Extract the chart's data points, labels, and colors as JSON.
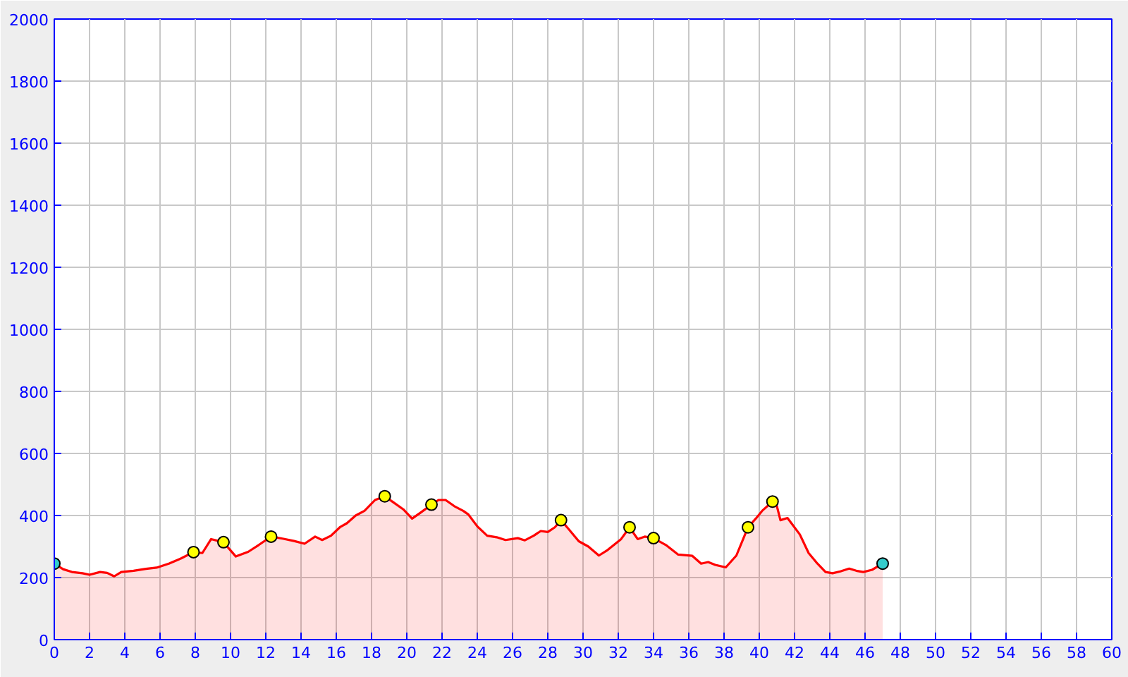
{
  "chart_data": {
    "type": "area",
    "xlim": [
      0,
      60
    ],
    "xticks": [
      0,
      2,
      4,
      6,
      8,
      10,
      12,
      14,
      16,
      18,
      20,
      22,
      24,
      26,
      28,
      30,
      32,
      34,
      36,
      38,
      40,
      42,
      44,
      46,
      48,
      50,
      52,
      54,
      56,
      58,
      60
    ],
    "ylim": [
      0,
      2000
    ],
    "yticks": [
      0,
      200,
      400,
      600,
      800,
      1000,
      1200,
      1400,
      1600,
      1800,
      2000
    ],
    "grid": true,
    "series": [
      {
        "color": "#ff0000",
        "x": [
          0.0,
          0.5,
          1.0,
          1.6,
          2.0,
          2.6,
          3.0,
          3.4,
          3.8,
          4.5,
          5.2,
          5.8,
          6.5,
          7.2,
          7.9,
          8.4,
          8.9,
          9.6,
          10.3,
          11.0,
          11.6,
          12.3,
          13.0,
          13.6,
          14.2,
          14.8,
          15.2,
          15.7,
          16.2,
          16.6,
          17.1,
          17.6,
          18.2,
          18.75,
          19.3,
          19.8,
          20.3,
          20.8,
          21.4,
          21.8,
          22.2,
          22.7,
          23.2,
          23.5,
          24.0,
          24.56,
          25.1,
          25.6,
          26.3,
          26.7,
          27.2,
          27.6,
          28.0,
          28.4,
          28.75,
          29.2,
          29.76,
          30.3,
          30.9,
          31.4,
          32.16,
          32.64,
          33.1,
          33.5,
          34.0,
          34.7,
          35.4,
          36.2,
          36.7,
          37.1,
          37.5,
          38.1,
          38.7,
          39.36,
          39.8,
          40.16,
          40.75,
          41.0,
          41.2,
          41.6,
          42.3,
          42.8,
          43.3,
          43.76,
          44.16,
          44.6,
          45.1,
          45.5,
          45.9,
          46.4,
          47.0
        ],
        "values": [
          245,
          227,
          218,
          214,
          209,
          218,
          215,
          204,
          218,
          222,
          228,
          232,
          245,
          262,
          282,
          279,
          324,
          314,
          268,
          283,
          305,
          332,
          325,
          318,
          309,
          332,
          321,
          335,
          362,
          375,
          400,
          415,
          450,
          462,
          440,
          420,
          390,
          410,
          435,
          450,
          450,
          430,
          415,
          403,
          365,
          335,
          330,
          321,
          327,
          320,
          335,
          350,
          347,
          362,
          385,
          355,
          317,
          300,
          271,
          289,
          324,
          362,
          324,
          332,
          327,
          305,
          274,
          270,
          245,
          250,
          241,
          233,
          271,
          362,
          390,
          415,
          445,
          430,
          385,
          392,
          339,
          279,
          245,
          218,
          214,
          220,
          229,
          222,
          218,
          225,
          245
        ]
      },
      {
        "type": "scatter",
        "color": "#ffff00",
        "marker": "circle",
        "x": [
          7.9,
          9.6,
          12.3,
          18.75,
          21.4,
          28.75,
          32.64,
          34.0,
          39.36,
          40.75
        ],
        "values": [
          282,
          314,
          332,
          462,
          435,
          385,
          362,
          327,
          362,
          445
        ]
      },
      {
        "type": "scatter",
        "color": "#33cccc",
        "marker": "circle",
        "x": [
          0.0,
          47.0
        ],
        "values": [
          245,
          245
        ]
      }
    ]
  }
}
